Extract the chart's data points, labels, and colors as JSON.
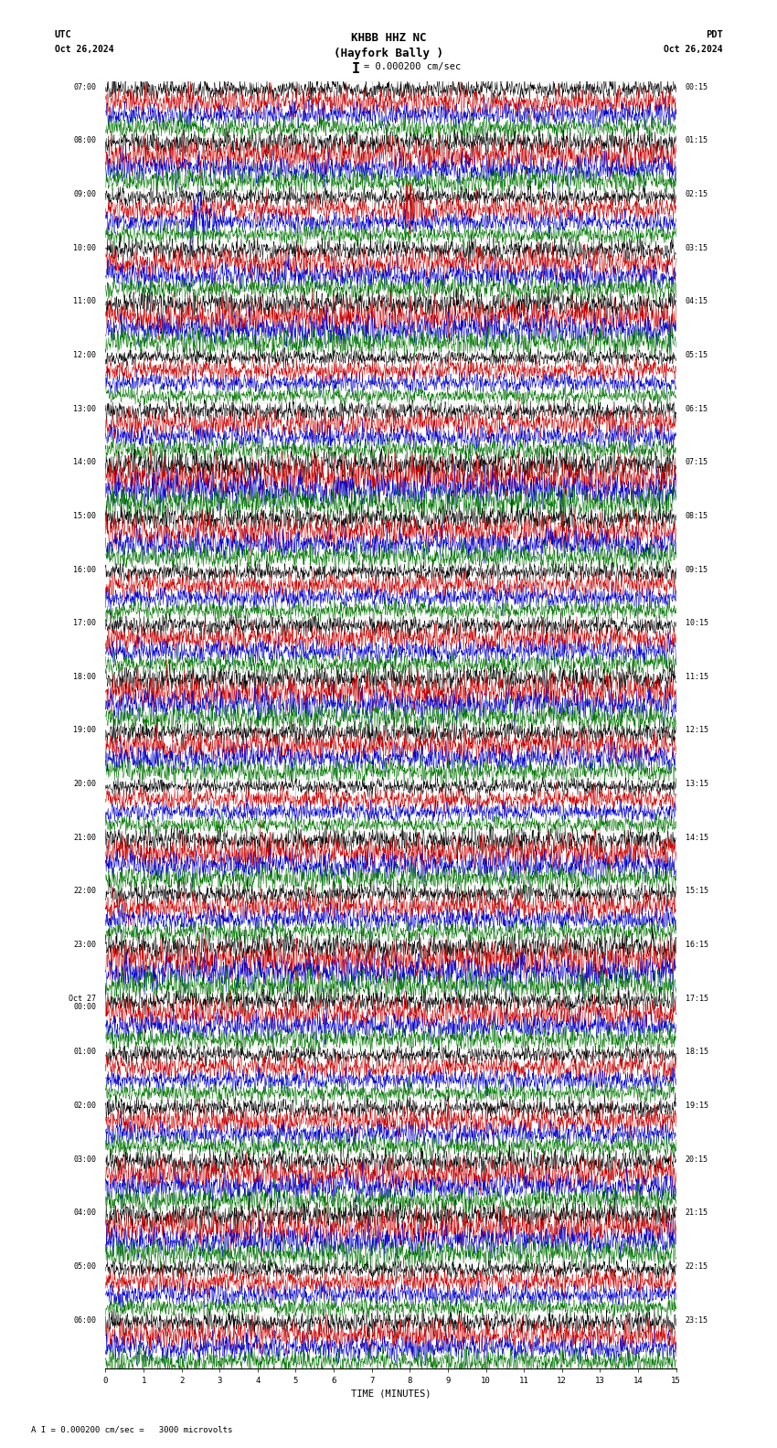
{
  "title_line1": "KHBB HHZ NC",
  "title_line2": "(Hayfork Bally )",
  "scale_label": "= 0.000200 cm/sec",
  "utc_label": "UTC",
  "pdt_label": "PDT",
  "date_left": "Oct 26,2024",
  "date_right": "Oct 26,2024",
  "bottom_note": "A I = 0.000200 cm/sec =   3000 microvolts",
  "xlabel": "TIME (MINUTES)",
  "bg_color": "#ffffff",
  "trace_colors": [
    "#000000",
    "#cc0000",
    "#0000cc",
    "#007700"
  ],
  "n_rows": 24,
  "minutes_per_row": 15,
  "utc_start_times": [
    "07:00",
    "08:00",
    "09:00",
    "10:00",
    "11:00",
    "12:00",
    "13:00",
    "14:00",
    "15:00",
    "16:00",
    "17:00",
    "18:00",
    "19:00",
    "20:00",
    "21:00",
    "22:00",
    "23:00",
    "Oct 27\n00:00",
    "01:00",
    "02:00",
    "03:00",
    "04:00",
    "05:00",
    "06:00"
  ],
  "pdt_times": [
    "00:15",
    "01:15",
    "02:15",
    "03:15",
    "04:15",
    "05:15",
    "06:15",
    "07:15",
    "08:15",
    "09:15",
    "10:15",
    "11:15",
    "12:15",
    "13:15",
    "14:15",
    "15:15",
    "16:15",
    "17:15",
    "18:15",
    "19:15",
    "20:15",
    "21:15",
    "22:15",
    "23:15"
  ],
  "n_traces_per_row": 4,
  "trace_lw": 0.35,
  "font_size_title": 9,
  "font_size_labels": 7.5,
  "font_size_times": 6.5,
  "font_family": "monospace",
  "grid_color": "#888888",
  "grid_lw": 0.4,
  "eq_row": 2,
  "eq_blue_min": 2.2,
  "eq_red_min": 7.8,
  "eq2_row": 13,
  "eq2_green_min": 2.8
}
